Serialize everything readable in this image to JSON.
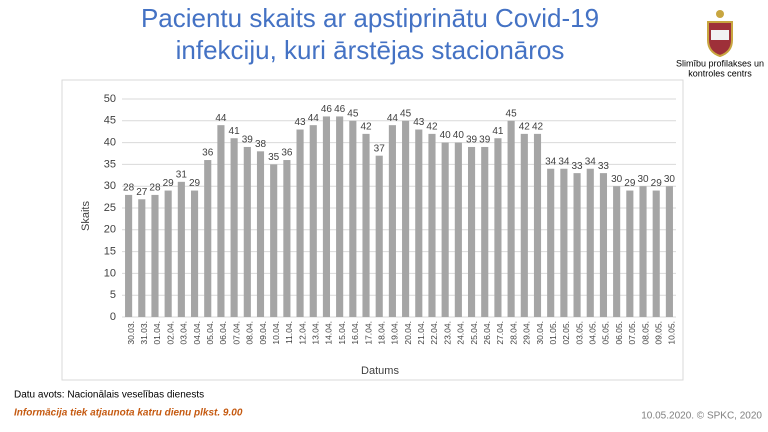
{
  "chart_data": {
    "type": "bar",
    "title": [
      "Pacientu skaits ar apstiprinātu Covid-19",
      "infekciju, kuri ārstējas stacionāros"
    ],
    "y_label": "Skaits",
    "x_label": "Datums",
    "categories": [
      "30.03.",
      "31.03.",
      "01.04.",
      "02.04.",
      "03.04.",
      "04.04.",
      "05.04.",
      "06.04.",
      "07.04.",
      "08.04.",
      "09.04.",
      "10.04.",
      "11.04.",
      "12.04.",
      "13.04.",
      "14.04.",
      "15.04.",
      "16.04.",
      "17.04.",
      "18.04.",
      "19.04.",
      "20.04.",
      "21.04.",
      "22.04.",
      "23.04.",
      "24.04.",
      "25.04.",
      "26.04.",
      "27.04.",
      "28.04.",
      "29.04.",
      "30.04.",
      "01.05.",
      "02.05.",
      "03.05.",
      "04.05.",
      "05.05.",
      "06.05.",
      "07.05.",
      "08.05.",
      "09.05.",
      "10.05."
    ],
    "values": [
      28,
      27,
      28,
      29,
      31,
      29,
      36,
      44,
      41,
      39,
      38,
      35,
      36,
      43,
      44,
      46,
      46,
      45,
      42,
      37,
      44,
      45,
      43,
      42,
      40,
      40,
      39,
      39,
      41,
      45,
      42,
      42,
      34,
      34,
      33,
      34,
      33,
      30,
      29,
      30,
      29,
      30
    ],
    "color": "#a5a5a5",
    "ylim": [
      0,
      50
    ],
    "yticks": [
      0,
      5,
      10,
      15,
      20,
      25,
      30,
      35,
      40,
      45,
      50
    ],
    "grid": true
  },
  "logo_text": [
    "Slimību profilakses un",
    "kontroles centrs"
  ],
  "footer": {
    "source": "Datu avots: Nacionālais veselības dienests",
    "update_note": "Informācija tiek atjaunota katru dienu plkst. 9.00",
    "stamp": "10.05.2020. © SPKC, 2020"
  }
}
